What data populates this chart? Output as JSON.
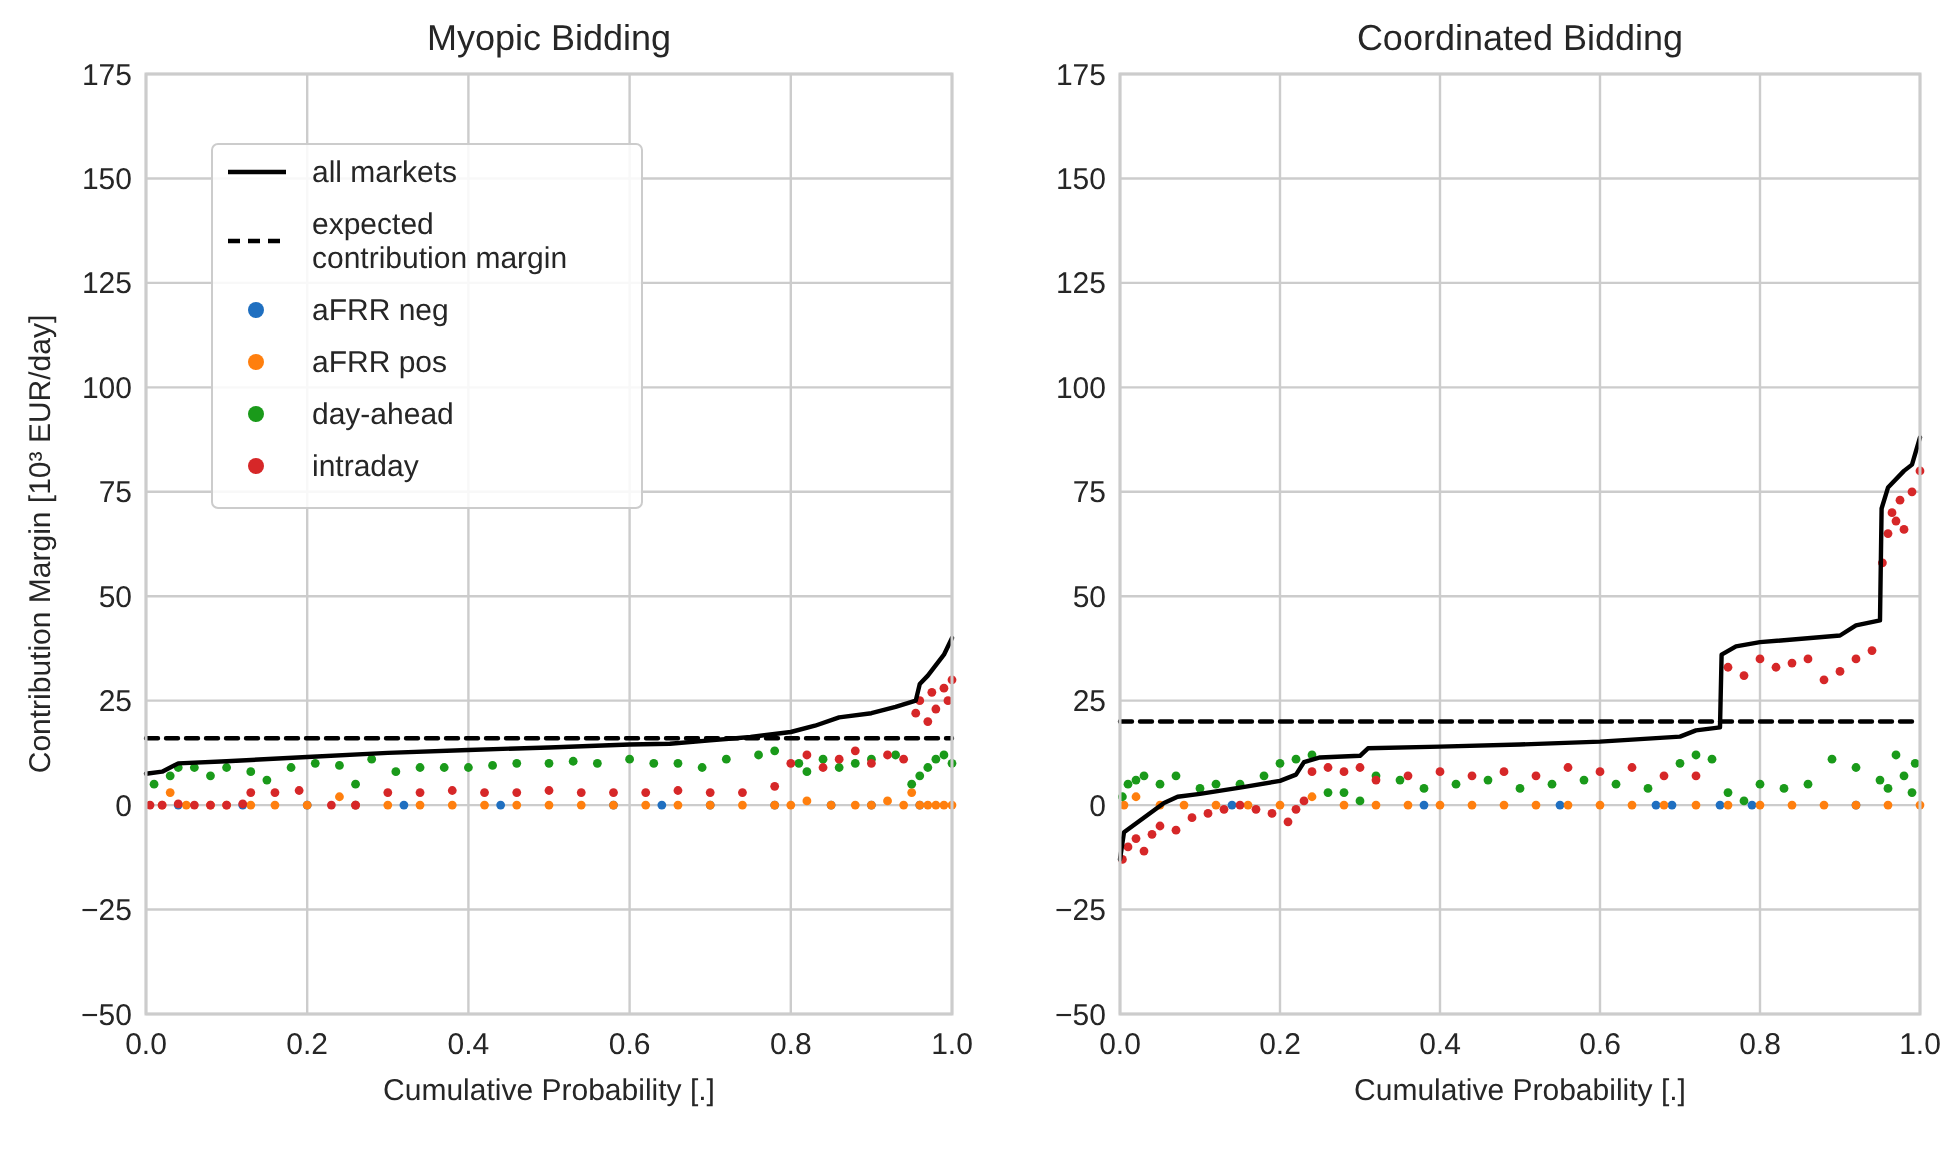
{
  "chart_data": [
    {
      "type": "scatter",
      "title": "Myopic Bidding",
      "xlabel": "Cumulative Probability [.]",
      "ylabel": "Contribution Margin [10³ EUR/day]",
      "xlim": [
        0,
        1
      ],
      "ylim": [
        -50,
        175
      ],
      "xticks": [
        {
          "value": 0,
          "label": "0.0"
        },
        {
          "value": 0.2,
          "label": "0.2"
        },
        {
          "value": 0.4,
          "label": "0.4"
        },
        {
          "value": 0.6,
          "label": "0.6"
        },
        {
          "value": 0.8,
          "label": "0.8"
        },
        {
          "value": 1,
          "label": "1.0"
        }
      ],
      "yticks": [
        -50,
        -25,
        0,
        25,
        50,
        75,
        100,
        125,
        150,
        175
      ],
      "grid": true,
      "legend": "top left",
      "marker": "circle",
      "series": [
        {
          "type": "line",
          "name": "all markets",
          "color": "#000000",
          "line_style": "solid",
          "marker": "none",
          "x": [
            0,
            0.02,
            0.04,
            0.1,
            0.2,
            0.3,
            0.4,
            0.5,
            0.6,
            0.65,
            0.7,
            0.75,
            0.8,
            0.83,
            0.86,
            0.9,
            0.93,
            0.955,
            0.96,
            0.97,
            0.99,
            1
          ],
          "values": [
            7.5,
            8,
            10,
            10.5,
            11.5,
            12.5,
            13.2,
            13.8,
            14.5,
            14.7,
            15.5,
            16.3,
            17.5,
            19,
            21,
            22,
            23.5,
            25,
            29,
            31,
            36,
            40
          ]
        },
        {
          "type": "line",
          "name": "expected contribution margin",
          "color": "#000000",
          "line_style": "dashed",
          "marker": "none",
          "x": [
            0,
            1
          ],
          "values": [
            16,
            16
          ]
        },
        {
          "name": "aFRR neg",
          "color": "#1f6fc0",
          "x": [
            0.04,
            0.12,
            0.2,
            0.26,
            0.32,
            0.44,
            0.58,
            0.64,
            0.7,
            0.78,
            0.85,
            0.9,
            0.96
          ],
          "values": [
            0,
            0,
            0,
            0,
            0,
            0,
            0,
            0,
            0,
            0,
            0,
            0,
            0
          ]
        },
        {
          "name": "aFRR pos",
          "color": "#ff7f0e",
          "x": [
            0.02,
            0.03,
            0.05,
            0.08,
            0.1,
            0.13,
            0.16,
            0.2,
            0.24,
            0.26,
            0.3,
            0.34,
            0.38,
            0.42,
            0.46,
            0.5,
            0.54,
            0.58,
            0.62,
            0.66,
            0.7,
            0.74,
            0.78,
            0.8,
            0.82,
            0.85,
            0.88,
            0.9,
            0.92,
            0.94,
            0.95,
            0.96,
            0.97,
            0.98,
            0.99,
            1
          ],
          "values": [
            0,
            3,
            0,
            0,
            0,
            0,
            0,
            0,
            2,
            0,
            0,
            0,
            0,
            0,
            0,
            0,
            0,
            0,
            0,
            0,
            0,
            0,
            0,
            0,
            1,
            0,
            0,
            0,
            1,
            0,
            3,
            0,
            0,
            0,
            0,
            0
          ]
        },
        {
          "name": "day-ahead",
          "color": "#1a9a1a",
          "x": [
            0.01,
            0.03,
            0.04,
            0.06,
            0.08,
            0.1,
            0.13,
            0.15,
            0.18,
            0.21,
            0.24,
            0.26,
            0.28,
            0.31,
            0.34,
            0.37,
            0.4,
            0.43,
            0.46,
            0.5,
            0.53,
            0.56,
            0.6,
            0.63,
            0.66,
            0.69,
            0.72,
            0.76,
            0.78,
            0.81,
            0.82,
            0.84,
            0.86,
            0.88,
            0.9,
            0.93,
            0.95,
            0.96,
            0.97,
            0.98,
            0.99,
            1
          ],
          "values": [
            5,
            7,
            9,
            9,
            7,
            9,
            8,
            6,
            9,
            10,
            9.5,
            5,
            11,
            8,
            9,
            9,
            9,
            9.5,
            10,
            10,
            10.5,
            10,
            11,
            10,
            10,
            9,
            11,
            12,
            13,
            10,
            8,
            11,
            9,
            10,
            11,
            12,
            5,
            7,
            9,
            11,
            12,
            10
          ]
        },
        {
          "name": "intraday",
          "color": "#d62728",
          "x": [
            0.005,
            0.02,
            0.04,
            0.06,
            0.08,
            0.1,
            0.12,
            0.13,
            0.16,
            0.19,
            0.23,
            0.26,
            0.3,
            0.34,
            0.38,
            0.42,
            0.46,
            0.5,
            0.54,
            0.58,
            0.62,
            0.66,
            0.7,
            0.74,
            0.78,
            0.8,
            0.82,
            0.84,
            0.86,
            0.88,
            0.9,
            0.92,
            0.94,
            0.955,
            0.96,
            0.97,
            0.975,
            0.98,
            0.99,
            0.995,
            1
          ],
          "values": [
            0,
            0,
            0.3,
            0,
            0,
            0,
            0.3,
            3,
            3,
            3.5,
            0,
            0,
            3,
            3,
            3.5,
            3,
            3,
            3.5,
            3,
            3,
            3,
            3.5,
            3,
            3,
            4.5,
            10,
            12,
            9,
            11,
            13,
            10,
            12,
            11,
            22,
            25,
            20,
            27,
            23,
            28,
            25,
            30
          ]
        }
      ]
    },
    {
      "type": "scatter",
      "title": "Coordinated Bidding",
      "xlabel": "Cumulative Probability [.]",
      "xlim": [
        0,
        1
      ],
      "ylim": [
        -50,
        175
      ],
      "xticks": [
        {
          "value": 0,
          "label": "0.0"
        },
        {
          "value": 0.2,
          "label": "0.2"
        },
        {
          "value": 0.4,
          "label": "0.4"
        },
        {
          "value": 0.6,
          "label": "0.6"
        },
        {
          "value": 0.8,
          "label": "0.8"
        },
        {
          "value": 1,
          "label": "1.0"
        }
      ],
      "yticks": [
        -50,
        -25,
        0,
        25,
        50,
        75,
        100,
        125,
        150,
        175
      ],
      "grid": true,
      "marker": "circle",
      "series": [
        {
          "type": "line",
          "color": "#000000",
          "line_style": "solid",
          "marker": "none",
          "x": [
            0,
            0.005,
            0.055,
            0.072,
            0.1,
            0.15,
            0.2,
            0.22,
            0.23,
            0.25,
            0.3,
            0.31,
            0.4,
            0.5,
            0.6,
            0.7,
            0.72,
            0.75,
            0.752,
            0.77,
            0.8,
            0.9,
            0.92,
            0.95,
            0.952,
            0.96,
            0.98,
            0.99,
            1
          ],
          "values": [
            -13,
            -6.5,
            0.5,
            2,
            2.7,
            4.2,
            5.8,
            7.3,
            10.3,
            11.4,
            11.8,
            13.6,
            14,
            14.5,
            15.2,
            16.4,
            17.9,
            18.6,
            36,
            38,
            39,
            40.6,
            43,
            44.2,
            71,
            76,
            80,
            81.5,
            88
          ]
        },
        {
          "type": "line",
          "color": "#000000",
          "line_style": "dashed",
          "marker": "none",
          "x": [
            0,
            1
          ],
          "values": [
            20,
            20
          ]
        },
        {
          "color": "#1f6fc0",
          "x": [
            0.14,
            0.38,
            0.55,
            0.67,
            0.69,
            0.75,
            0.79,
            0.92
          ],
          "values": [
            0,
            0,
            0,
            0,
            0,
            0,
            0,
            0
          ]
        },
        {
          "color": "#ff7f0e",
          "x": [
            0.005,
            0.02,
            0.05,
            0.08,
            0.12,
            0.16,
            0.2,
            0.24,
            0.28,
            0.32,
            0.36,
            0.4,
            0.44,
            0.48,
            0.52,
            0.56,
            0.6,
            0.64,
            0.68,
            0.72,
            0.76,
            0.8,
            0.84,
            0.88,
            0.92,
            0.96,
            1
          ],
          "values": [
            0,
            2,
            0,
            0,
            0,
            0,
            0,
            2,
            0,
            0,
            0,
            0,
            0,
            0,
            0,
            0,
            0,
            0,
            0,
            0,
            0,
            0,
            0,
            0,
            0,
            0,
            0
          ]
        },
        {
          "color": "#1a9a1a",
          "x": [
            0.003,
            0.01,
            0.02,
            0.03,
            0.05,
            0.07,
            0.1,
            0.12,
            0.15,
            0.18,
            0.2,
            0.22,
            0.24,
            0.26,
            0.28,
            0.3,
            0.32,
            0.35,
            0.38,
            0.42,
            0.46,
            0.5,
            0.54,
            0.58,
            0.62,
            0.66,
            0.7,
            0.72,
            0.74,
            0.76,
            0.78,
            0.8,
            0.83,
            0.86,
            0.89,
            0.92,
            0.95,
            0.96,
            0.97,
            0.98,
            0.99,
            0.994
          ],
          "values": [
            2,
            5,
            6,
            7,
            5,
            7,
            4,
            5,
            5,
            7,
            10,
            11,
            12,
            3,
            3,
            1,
            7,
            6,
            4,
            5,
            6,
            4,
            5,
            6,
            5,
            4,
            10,
            12,
            11,
            3,
            1,
            5,
            4,
            5,
            11,
            9,
            6,
            4,
            12,
            7,
            3,
            10
          ]
        },
        {
          "color": "#d62728",
          "x": [
            0.003,
            0.01,
            0.02,
            0.03,
            0.04,
            0.05,
            0.07,
            0.09,
            0.11,
            0.13,
            0.15,
            0.17,
            0.19,
            0.21,
            0.22,
            0.23,
            0.24,
            0.26,
            0.28,
            0.3,
            0.32,
            0.36,
            0.4,
            0.44,
            0.48,
            0.52,
            0.56,
            0.6,
            0.64,
            0.68,
            0.72,
            0.76,
            0.78,
            0.8,
            0.82,
            0.84,
            0.86,
            0.88,
            0.9,
            0.92,
            0.94,
            0.953,
            0.96,
            0.965,
            0.97,
            0.975,
            0.98,
            0.99,
            1
          ],
          "values": [
            -13,
            -10,
            -8,
            -11,
            -7,
            -5,
            -6,
            -3,
            -2,
            -1,
            0,
            -1,
            -2,
            -4,
            -1,
            1,
            8,
            9,
            8,
            9,
            6,
            7,
            8,
            7,
            8,
            7,
            9,
            8,
            9,
            7,
            7,
            33,
            31,
            35,
            33,
            34,
            35,
            30,
            32,
            35,
            37,
            58,
            65,
            70,
            68,
            73,
            66,
            75,
            80
          ]
        }
      ]
    }
  ]
}
